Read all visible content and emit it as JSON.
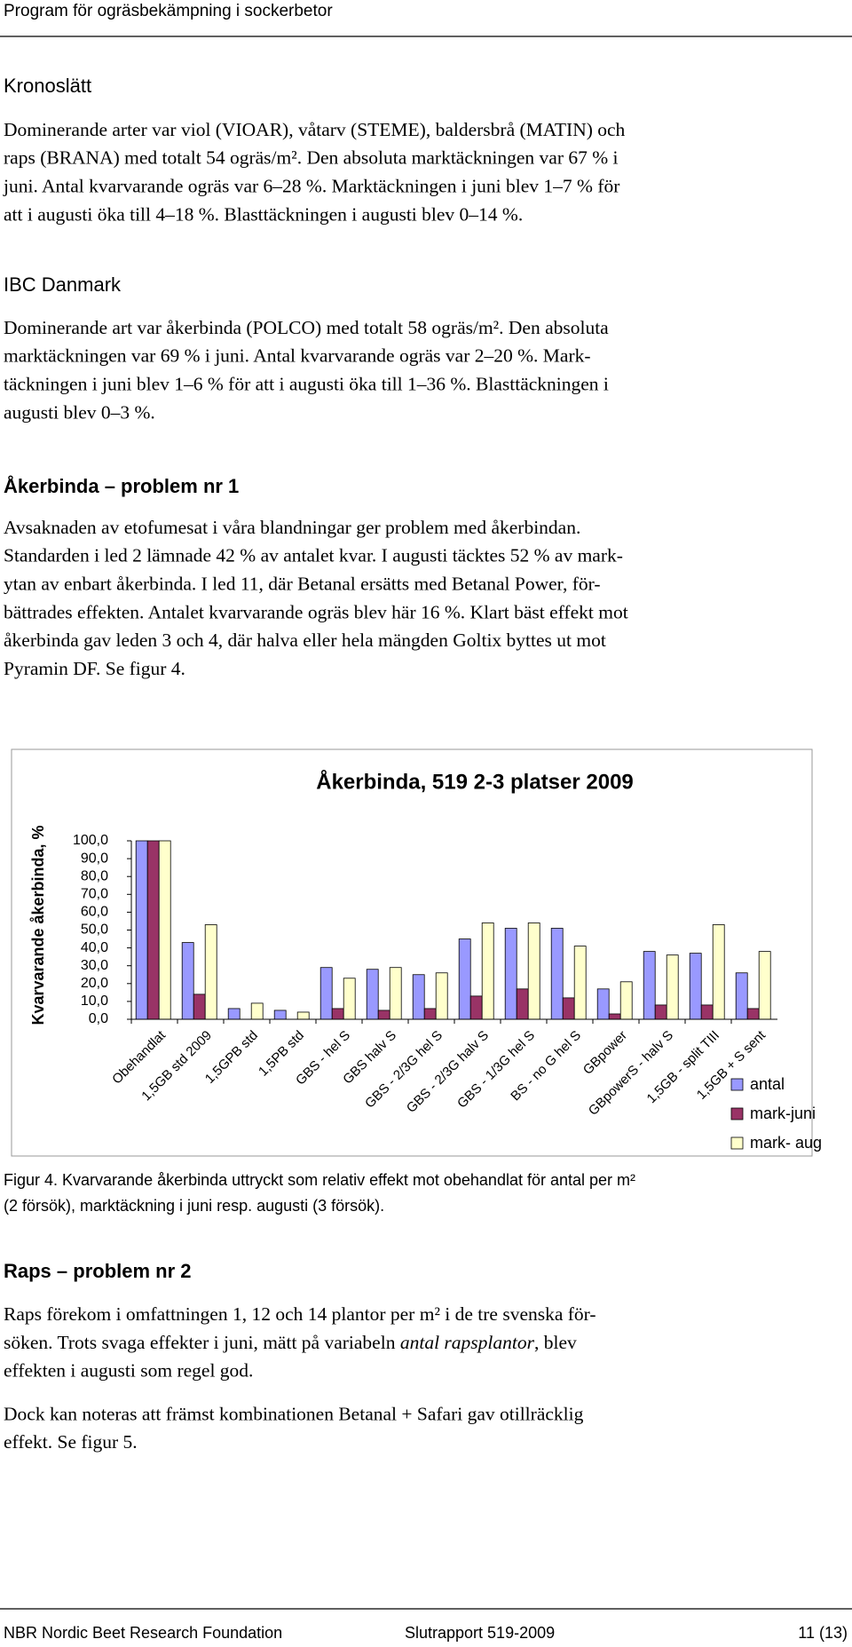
{
  "header": {
    "title": "Program för ogräsbekämpning i sockerbetor"
  },
  "sections": [
    {
      "heading": "Kronoslätt",
      "paragraphs": [
        [
          "Dominerande arter var viol (VIOAR), våtarv (STEME), baldersbrå (MATIN) och",
          "raps (BRANA) med totalt 54 ogräs/m². Den absoluta marktäckningen var 67 % i",
          "juni. Antal kvarvarande ogräs var 6–28 %. Marktäckningen i juni blev 1–7 % för",
          "att i augusti öka till 4–18 %. Blasttäckningen i augusti blev 0–14 %."
        ]
      ]
    },
    {
      "heading": "IBC Danmark",
      "paragraphs": [
        [
          "Dominerande art var åkerbinda (POLCO) med totalt 58 ogräs/m². Den absoluta",
          "marktäckningen var 69 % i juni. Antal kvarvarande ogräs var 2–20 %. Mark-",
          "täckningen i juni blev 1–6 % för att i augusti öka till 1–36 %. Blasttäckningen i",
          "augusti blev 0–3 %."
        ]
      ]
    },
    {
      "heading": "Åkerbinda – problem nr 1",
      "paragraphs": [
        [
          "Avsaknaden av etofumesat i våra blandningar ger problem med åkerbindan.",
          "Standarden i led 2 lämnade 42 % av antalet kvar. I augusti täcktes 52 % av mark-",
          "ytan av enbart åkerbinda. I led 11, där Betanal ersätts med Betanal Power, för-",
          "bättrades effekten. Antalet kvarvarande ogräs blev här 16 %. Klart bäst effekt mot",
          "åkerbinda gav leden 3 och 4, där halva eller hela mängden Goltix byttes ut mot",
          "Pyramin DF. Se figur 4."
        ]
      ]
    },
    {
      "heading": "Raps – problem nr 2",
      "paragraphs": [
        [
          "Raps förekom i omfattningen 1, 12 och 14 plantor per m² i de tre svenska för-",
          [
            "söken. Trots svaga effekter i juni, mätt på variabeln ",
            "antal rapsplantor",
            ", blev"
          ],
          "effekten i augusti som regel god."
        ],
        [
          "Dock kan noteras att främst kombinationen Betanal + Safari gav otillräcklig",
          "effekt. Se figur 5."
        ]
      ]
    }
  ],
  "chart_data": {
    "type": "bar",
    "title": "Åkerbinda, 519 2-3 platser 2009",
    "y_label": "Kvarvarande åkerbinda, %",
    "categories": [
      "Obehandlat",
      "1,5GB std 2009",
      "1,5GPB std",
      "1,5PB std",
      "GBS - hel S",
      "GBS halv S",
      "GBS - 2/3G hel S",
      "GBS - 2/3G halv S",
      "GBS - 1/3G hel S",
      "BS - no G hel S",
      "GBpower",
      "GBpowerS - halv S",
      "1,5GB - split TIII",
      "1,5GB + S sent"
    ],
    "series": [
      {
        "name": "antal",
        "color": "#9999ff",
        "values": [
          100,
          43,
          6,
          5,
          29,
          28,
          25,
          45,
          51,
          51,
          17,
          38,
          37,
          26
        ]
      },
      {
        "name": "mark-juni",
        "color": "#993366",
        "values": [
          100,
          14,
          0,
          0,
          6,
          5,
          6,
          13,
          17,
          12,
          3,
          8,
          8,
          6
        ]
      },
      {
        "name": "mark- aug",
        "color": "#ffffcc",
        "values": [
          100,
          53,
          9,
          4,
          23,
          29,
          26,
          54,
          54,
          41,
          21,
          36,
          53,
          38
        ]
      }
    ],
    "ylim": [
      0,
      100
    ],
    "yticks": [
      {
        "value": 0,
        "label": "0,0"
      },
      {
        "value": 10,
        "label": "10,0"
      },
      {
        "value": 20,
        "label": "20,0"
      },
      {
        "value": 30,
        "label": "30,0"
      },
      {
        "value": 40,
        "label": "40,0"
      },
      {
        "value": 50,
        "label": "50,0"
      },
      {
        "value": 60,
        "label": "60,0"
      },
      {
        "value": 70,
        "label": "70,0"
      },
      {
        "value": 80,
        "label": "80,0"
      },
      {
        "value": 90,
        "label": "90,0"
      },
      {
        "value": 100,
        "label": "100,0"
      }
    ],
    "legend": "right"
  },
  "caption": {
    "lines": [
      "Figur 4. Kvarvarande åkerbinda uttryckt som relativ effekt mot obehandlat för antal per m²",
      "(2 försök), marktäckning i juni resp. augusti (3 försök)."
    ]
  },
  "footer": {
    "left": "NBR Nordic Beet Research Foundation",
    "center": "Slutrapport 519-2009",
    "right": "11 (13)"
  }
}
